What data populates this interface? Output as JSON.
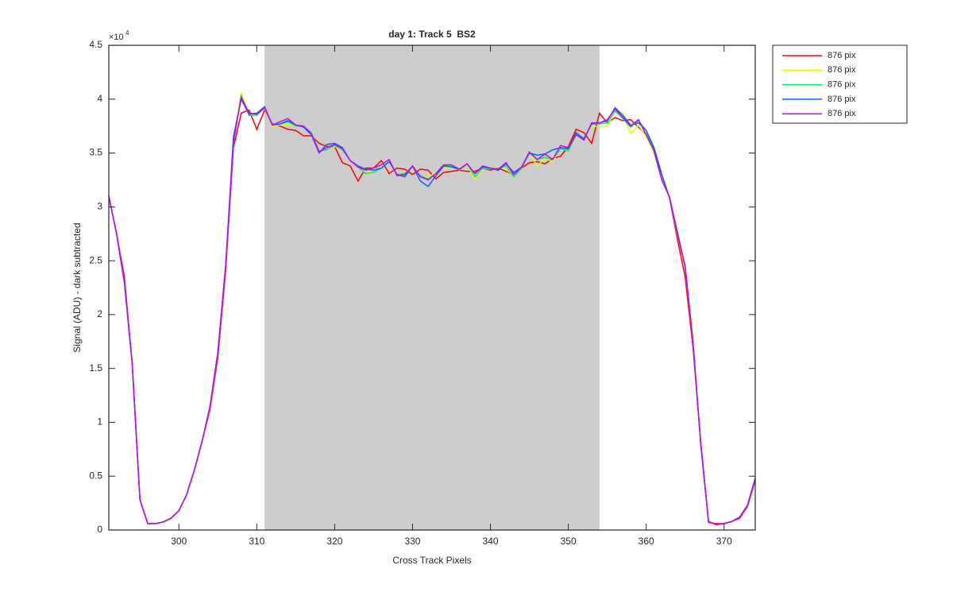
{
  "chart_data": {
    "type": "line",
    "title": "day 1: Track 5  BS2",
    "xlabel": "Cross Track Pixels",
    "ylabel": "Signal (ADU) - dark subtracted",
    "y_multiplier_base": "×10",
    "y_multiplier_exponent": 4,
    "x": [
      291,
      292,
      293,
      294,
      295,
      296,
      297,
      298,
      299,
      300,
      301,
      302,
      303,
      304,
      305,
      306,
      307,
      308,
      309,
      310,
      311,
      312,
      313,
      314,
      315,
      316,
      317,
      318,
      319,
      320,
      321,
      322,
      323,
      324,
      325,
      326,
      327,
      328,
      329,
      330,
      331,
      332,
      333,
      334,
      335,
      336,
      337,
      338,
      339,
      340,
      341,
      342,
      343,
      344,
      345,
      346,
      347,
      348,
      349,
      350,
      351,
      352,
      353,
      354,
      355,
      356,
      357,
      358,
      359,
      360,
      361,
      362,
      363,
      364,
      365,
      366,
      367,
      368,
      369,
      370,
      371,
      372,
      373,
      374
    ],
    "highlight_xrange": [
      311,
      354
    ],
    "highlight_color": "#cccccc",
    "xlim": [
      291,
      374
    ],
    "xticks": [
      300,
      310,
      320,
      330,
      340,
      350,
      360,
      370
    ],
    "ylim": [
      0,
      45000
    ],
    "yticks": [
      {
        "value": 0,
        "label": "0"
      },
      {
        "value": 5000,
        "label": "0.5"
      },
      {
        "value": 10000,
        "label": "1"
      },
      {
        "value": 15000,
        "label": "1.5"
      },
      {
        "value": 20000,
        "label": "2"
      },
      {
        "value": 25000,
        "label": "2.5"
      },
      {
        "value": 30000,
        "label": "3"
      },
      {
        "value": 35000,
        "label": "3.5"
      },
      {
        "value": 40000,
        "label": "4"
      },
      {
        "value": 45000,
        "label": "4.5"
      }
    ],
    "legend": "outside-top-right",
    "series": [
      {
        "name": "876 pix",
        "color": "#ff0000",
        "values": [
          31000,
          27500,
          23500,
          15500,
          2800,
          600,
          600,
          750,
          1100,
          1800,
          3300,
          5600,
          8300,
          11200,
          16000,
          24000,
          35500,
          38700,
          39000,
          37200,
          39000,
          37700,
          37500,
          37200,
          37100,
          36600,
          36600,
          35900,
          35600,
          35600,
          34100,
          33800,
          32400,
          33600,
          33600,
          34300,
          33100,
          33600,
          33500,
          33000,
          33500,
          33400,
          32600,
          33200,
          33300,
          33400,
          33300,
          33300,
          33600,
          33400,
          33600,
          33300,
          33000,
          33600,
          34100,
          34200,
          34000,
          34500,
          34700,
          35600,
          37200,
          36900,
          35900,
          38700,
          37800,
          38300,
          38000,
          38100,
          37400,
          36700,
          35500,
          33000,
          30800,
          27000,
          23500,
          17000,
          8200,
          700,
          600,
          600,
          800,
          1100,
          2200,
          4600
        ]
      },
      {
        "name": "876 pix",
        "color": "#e6ff00",
        "values": [
          31000,
          27500,
          23000,
          15500,
          2800,
          600,
          600,
          750,
          1100,
          1800,
          3300,
          5600,
          8300,
          11400,
          16400,
          24400,
          36000,
          40600,
          38500,
          38600,
          39100,
          37500,
          37600,
          37700,
          37500,
          37400,
          36700,
          35200,
          35300,
          35600,
          35300,
          34400,
          33600,
          33300,
          33200,
          33700,
          34100,
          33000,
          33200,
          33500,
          32900,
          32700,
          33200,
          33700,
          33600,
          33600,
          33900,
          32600,
          33600,
          33500,
          33700,
          33500,
          32900,
          33600,
          35000,
          33800,
          34500,
          34200,
          35500,
          35200,
          36600,
          36400,
          37500,
          37400,
          37500,
          38900,
          38700,
          36800,
          37600,
          36500,
          35000,
          32600,
          30900,
          27400,
          24400,
          17400,
          8000,
          800,
          500,
          600,
          800,
          1200,
          2300,
          4800
        ]
      },
      {
        "name": "876 pix",
        "color": "#00ee66",
        "values": [
          31000,
          27500,
          23000,
          15500,
          2800,
          600,
          600,
          750,
          1100,
          1800,
          3300,
          5600,
          8300,
          11500,
          16500,
          24500,
          36000,
          40300,
          38500,
          38500,
          39200,
          37600,
          37700,
          37900,
          37500,
          37500,
          36900,
          35200,
          35300,
          35700,
          35300,
          34300,
          33700,
          33100,
          33200,
          33600,
          34200,
          33000,
          33100,
          33700,
          32900,
          32600,
          33100,
          33800,
          33800,
          33400,
          34000,
          32800,
          33600,
          33500,
          33600,
          33800,
          32800,
          33600,
          35000,
          34400,
          34600,
          34400,
          35400,
          35200,
          36700,
          36400,
          37700,
          37700,
          37800,
          38900,
          38200,
          37400,
          38000,
          37100,
          35200,
          32500,
          30900,
          27500,
          24500,
          17500,
          8000,
          800,
          500,
          600,
          800,
          1200,
          2300,
          4800
        ]
      },
      {
        "name": "876 pix",
        "color": "#0066ff",
        "values": [
          31000,
          27500,
          23000,
          15500,
          2800,
          600,
          600,
          750,
          1100,
          1800,
          3300,
          5600,
          8300,
          11500,
          16500,
          24500,
          36500,
          40000,
          38600,
          38700,
          39300,
          37600,
          37700,
          38000,
          37600,
          37400,
          36700,
          35000,
          35800,
          35900,
          35500,
          34300,
          33800,
          33500,
          33400,
          33600,
          34200,
          33000,
          32800,
          33800,
          32400,
          31900,
          32900,
          33800,
          33700,
          33500,
          34000,
          33100,
          33700,
          33600,
          33400,
          34000,
          33200,
          33700,
          35000,
          34800,
          34900,
          35300,
          35500,
          35400,
          36900,
          36300,
          37700,
          37800,
          38000,
          39200,
          38500,
          37600,
          37800,
          37100,
          35500,
          33000,
          30800,
          27700,
          24400,
          17500,
          8000,
          800,
          500,
          600,
          800,
          1200,
          2300,
          4800
        ]
      },
      {
        "name": "876 pix",
        "color": "#cc00ff",
        "values": [
          31000,
          27500,
          23000,
          15500,
          2800,
          600,
          600,
          750,
          1100,
          1800,
          3300,
          5600,
          8300,
          11500,
          16500,
          24500,
          36000,
          40200,
          38700,
          38600,
          39200,
          37600,
          37900,
          38200,
          37600,
          37500,
          36800,
          35100,
          35500,
          35800,
          35400,
          34300,
          33700,
          33400,
          33600,
          33900,
          34400,
          32900,
          33000,
          33800,
          32800,
          32500,
          33100,
          33900,
          33900,
          33500,
          34000,
          33100,
          33800,
          33600,
          33500,
          34100,
          33000,
          33700,
          35100,
          34400,
          34900,
          34400,
          35700,
          35500,
          36700,
          36200,
          37800,
          37800,
          38100,
          39100,
          38300,
          37500,
          38100,
          36700,
          35200,
          32500,
          30900,
          27500,
          24500,
          17500,
          8000,
          800,
          500,
          600,
          800,
          1200,
          2300,
          4800
        ]
      }
    ]
  }
}
